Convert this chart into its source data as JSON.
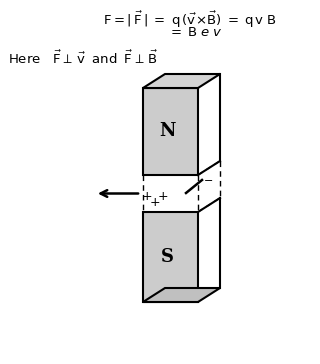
{
  "bg_color": "#ffffff",
  "fig_width": 3.2,
  "fig_height": 3.64,
  "dpi": 100,
  "N_label": "N",
  "S_label": "S",
  "pole_gray": "#cccccc",
  "pole_edge": "#000000"
}
